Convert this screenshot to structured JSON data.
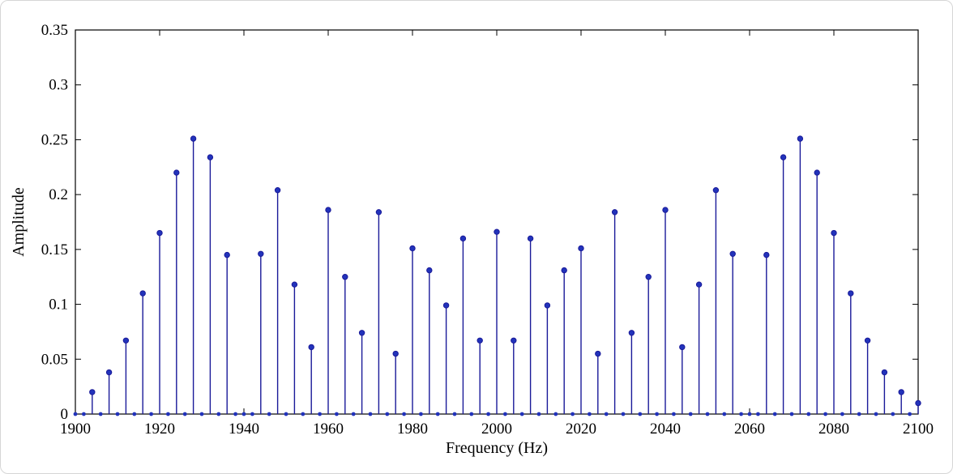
{
  "figure": {
    "xlabel": "Frequency (Hz)",
    "ylabel": "Amplitude"
  },
  "chart_data": {
    "type": "stem",
    "title": "",
    "xlabel": "Frequency (Hz)",
    "ylabel": "Amplitude",
    "xlim": [
      1900,
      2100
    ],
    "ylim": [
      0,
      0.35
    ],
    "xticks": [
      1900,
      1920,
      1940,
      1960,
      1980,
      2000,
      2020,
      2040,
      2060,
      2080,
      2100
    ],
    "yticks": [
      0,
      0.05,
      0.1,
      0.15,
      0.2,
      0.25,
      0.3,
      0.35
    ],
    "grid": false,
    "legend": null,
    "line_color": "#1a1a99",
    "marker_color": "#2233bb",
    "axis_color": "#000000",
    "points": [
      [
        1904,
        0.02
      ],
      [
        1908,
        0.038
      ],
      [
        1912,
        0.067
      ],
      [
        1916,
        0.11
      ],
      [
        1920,
        0.165
      ],
      [
        1924,
        0.22
      ],
      [
        1928,
        0.251
      ],
      [
        1932,
        0.234
      ],
      [
        1936,
        0.145
      ],
      [
        1944,
        0.146
      ],
      [
        1948,
        0.204
      ],
      [
        1952,
        0.118
      ],
      [
        1956,
        0.061
      ],
      [
        1960,
        0.186
      ],
      [
        1964,
        0.125
      ],
      [
        1968,
        0.074
      ],
      [
        1972,
        0.184
      ],
      [
        1976,
        0.055
      ],
      [
        1980,
        0.151
      ],
      [
        1984,
        0.131
      ],
      [
        1988,
        0.099
      ],
      [
        1992,
        0.16
      ],
      [
        1996,
        0.067
      ],
      [
        2000,
        0.166
      ],
      [
        2004,
        0.067
      ],
      [
        2008,
        0.16
      ],
      [
        2012,
        0.099
      ],
      [
        2016,
        0.131
      ],
      [
        2020,
        0.151
      ],
      [
        2024,
        0.055
      ],
      [
        2028,
        0.184
      ],
      [
        2032,
        0.074
      ],
      [
        2036,
        0.125
      ],
      [
        2040,
        0.186
      ],
      [
        2044,
        0.061
      ],
      [
        2048,
        0.118
      ],
      [
        2052,
        0.204
      ],
      [
        2056,
        0.146
      ],
      [
        2064,
        0.145
      ],
      [
        2068,
        0.234
      ],
      [
        2072,
        0.251
      ],
      [
        2076,
        0.22
      ],
      [
        2080,
        0.165
      ],
      [
        2084,
        0.11
      ],
      [
        2088,
        0.067
      ],
      [
        2092,
        0.038
      ],
      [
        2096,
        0.02
      ],
      [
        2100,
        0.01
      ]
    ],
    "zeros": {
      "start": 1900,
      "end": 2100,
      "step": 2
    }
  }
}
